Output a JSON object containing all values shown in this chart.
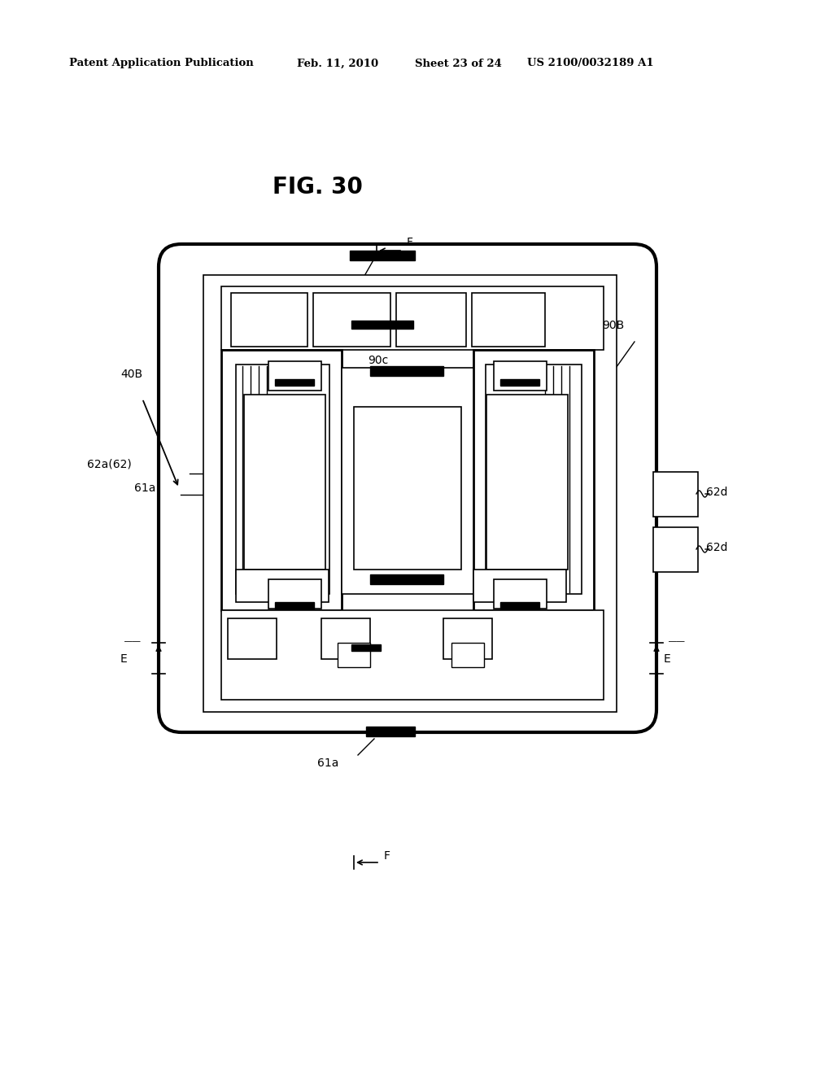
{
  "bg_color": "#ffffff",
  "header_text": "Patent Application Publication",
  "header_date": "Feb. 11, 2010",
  "header_sheet": "Sheet 23 of 24",
  "header_patent": "US 2100/0032189 A1",
  "fig_title": "FIG. 30"
}
